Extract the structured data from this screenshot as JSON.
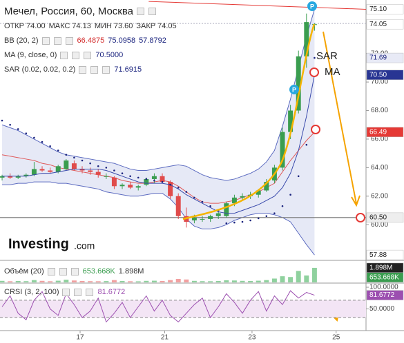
{
  "chart_data": [
    {
      "type": "candlestick",
      "title": "Мечел, Россия, 60, Москва",
      "ohlc_legend": [
        {
          "name": "ОТКР",
          "value": "74.00"
        },
        {
          "name": "МАКС",
          "value": "74.13"
        },
        {
          "name": "МИН",
          "value": "73.60"
        },
        {
          "name": "ЗАКР",
          "value": "74.05"
        }
      ],
      "indicators": [
        {
          "name": "BB (20, 2)",
          "values": [
            "66.4875",
            "75.0958",
            "57.8792"
          ],
          "colors": [
            "#d32f2f",
            "#1a237e",
            "#1a237e"
          ]
        },
        {
          "name": "MA (9, close, 0)",
          "values": [
            "70.5000"
          ],
          "colors": [
            "#1a237e"
          ]
        },
        {
          "name": "SAR (0.02, 0.02, 0.2)",
          "values": [
            "71.6915"
          ],
          "colors": [
            "#1a237e"
          ]
        }
      ],
      "open": [
        63.3,
        63.4,
        63.3,
        63.4,
        63.5,
        63.9,
        63.8,
        63.7,
        63.9,
        64.3,
        63.9,
        63.8,
        63.7,
        63.4,
        63.3,
        62.7,
        62.8,
        62.6,
        62.8,
        63.2,
        63.4,
        63.0,
        62.0,
        60.6,
        60.3,
        60.4,
        60.4,
        60.6,
        60.6,
        61.5,
        61.9,
        62.0,
        62.1,
        62.4,
        63.1,
        64.0,
        66.5,
        68.0,
        71.8,
        74.0
      ],
      "high": [
        63.5,
        63.6,
        63.5,
        63.6,
        64.4,
        64.1,
        64.0,
        64.2,
        64.6,
        64.5,
        64.1,
        64.0,
        63.9,
        63.6,
        63.4,
        62.9,
        63.0,
        62.8,
        63.3,
        63.6,
        63.6,
        63.1,
        62.2,
        61.2,
        60.7,
        60.6,
        60.7,
        61.0,
        61.6,
        62.1,
        62.2,
        62.3,
        62.5,
        63.2,
        64.2,
        66.8,
        68.4,
        72.2,
        74.8,
        74.13
      ],
      "low": [
        63.1,
        63.2,
        63.2,
        63.3,
        63.4,
        63.7,
        63.6,
        63.6,
        63.8,
        63.8,
        63.6,
        63.5,
        63.3,
        63.2,
        62.5,
        62.5,
        62.5,
        62.4,
        62.7,
        62.9,
        62.9,
        61.8,
        60.4,
        59.8,
        60.1,
        60.2,
        60.2,
        60.4,
        60.5,
        61.3,
        61.7,
        61.8,
        61.9,
        62.3,
        62.9,
        63.8,
        66.0,
        67.8,
        71.0,
        73.6
      ],
      "close": [
        63.4,
        63.3,
        63.4,
        63.5,
        63.9,
        63.8,
        63.7,
        64.1,
        64.5,
        63.9,
        63.8,
        63.7,
        63.5,
        63.4,
        62.7,
        62.8,
        62.6,
        62.7,
        63.2,
        63.4,
        63.0,
        62.0,
        60.6,
        60.2,
        60.5,
        60.4,
        60.6,
        60.8,
        61.5,
        61.9,
        62.0,
        62.1,
        62.4,
        63.0,
        64.0,
        66.5,
        68.0,
        71.8,
        74.2,
        74.05
      ],
      "up_color": "#3a9d4f",
      "down_color": "#e04b4b",
      "bollinger": {
        "color": "#5c6bc0",
        "fill": "#dcdff2",
        "middle_color": "#e05a5a",
        "upper": [
          67.0,
          66.8,
          66.6,
          66.3,
          66.0,
          65.7,
          65.4,
          65.1,
          64.9,
          64.8,
          64.7,
          64.6,
          64.5,
          64.4,
          64.3,
          64.1,
          63.9,
          63.8,
          63.8,
          63.9,
          64.0,
          64.1,
          64.2,
          64.1,
          63.8,
          63.5,
          63.3,
          63.2,
          63.1,
          63.2,
          63.4,
          63.6,
          63.9,
          64.4,
          65.2,
          66.9,
          68.8,
          71.0,
          73.2,
          75.0958
        ],
        "middle": [
          64.9,
          64.8,
          64.7,
          64.6,
          64.5,
          64.3,
          64.2,
          64.0,
          63.9,
          63.8,
          63.7,
          63.6,
          63.5,
          63.4,
          63.3,
          63.1,
          63.0,
          62.9,
          62.9,
          63.0,
          63.1,
          63.0,
          62.7,
          62.3,
          61.9,
          61.6,
          61.5,
          61.5,
          61.6,
          61.7,
          61.9,
          62.1,
          62.3,
          62.6,
          62.9,
          63.7,
          64.5,
          65.2,
          65.9,
          66.4875
        ],
        "lower": [
          62.8,
          62.8,
          62.9,
          62.9,
          63.0,
          63.0,
          63.0,
          62.9,
          62.9,
          62.8,
          62.7,
          62.6,
          62.5,
          62.3,
          62.2,
          62.1,
          62.0,
          62.0,
          62.1,
          62.2,
          62.2,
          61.8,
          61.2,
          60.4,
          59.9,
          59.7,
          59.7,
          59.8,
          60.0,
          60.3,
          60.5,
          60.7,
          60.8,
          60.8,
          60.7,
          60.5,
          60.2,
          59.4,
          58.6,
          57.8792
        ]
      },
      "ma": {
        "color": "#3949ab",
        "values": [
          63.4,
          63.4,
          63.4,
          63.4,
          63.5,
          63.6,
          63.6,
          63.7,
          63.8,
          63.9,
          63.9,
          63.9,
          63.9,
          63.8,
          63.6,
          63.4,
          63.2,
          63.0,
          62.9,
          62.9,
          62.9,
          62.8,
          62.5,
          62.1,
          61.8,
          61.5,
          61.2,
          60.9,
          60.8,
          60.8,
          61.0,
          61.2,
          61.4,
          61.7,
          62.0,
          62.6,
          63.6,
          65.2,
          67.6,
          70.5
        ]
      },
      "sar": {
        "color": "#1a237e",
        "values": [
          67.3,
          67.0,
          66.7,
          66.4,
          66.1,
          65.8,
          65.5,
          65.2,
          64.9,
          64.7,
          64.5,
          64.3,
          64.1,
          64.0,
          63.8,
          63.6,
          63.4,
          63.3,
          63.2,
          63.1,
          63.0,
          62.8,
          62.6,
          62.3,
          61.9,
          61.6,
          61.3,
          61.0,
          60.1,
          60.15,
          60.2,
          60.3,
          60.45,
          60.6,
          60.8,
          61.3,
          62.1,
          63.4,
          65.6,
          71.6915
        ]
      },
      "trendline": {
        "x": [
          18.3,
          45.43
        ],
        "y": [
          75.65,
          75.1
        ],
        "color": "#e53935"
      },
      "hline": {
        "value": 60.5,
        "color": "#777"
      },
      "tags": [
        {
          "value": 75.1,
          "label": "75.10",
          "color": "#fff",
          "text_color": "#222"
        },
        {
          "value": 74.05,
          "label": "74.05",
          "color": "#fff",
          "text_color": "#222"
        },
        {
          "value": 71.69,
          "label": "71.69",
          "color": "#e8eaf6",
          "text_color": "#1a237e"
        },
        {
          "value": 70.5,
          "label": "70.50",
          "color": "#283593",
          "text_color": "#fff"
        },
        {
          "value": 66.49,
          "label": "66.49",
          "color": "#e53935",
          "text_color": "#fff"
        },
        {
          "value": 60.5,
          "label": "60.50",
          "color": "#eee",
          "text_color": "#222"
        },
        {
          "value": 57.88,
          "label": "57.88",
          "color": "#fff",
          "text_color": "#222"
        }
      ],
      "ylim": [
        57.5,
        75.75
      ],
      "yticks": [
        {
          "value": 60,
          "label": "60.00"
        },
        {
          "value": 62,
          "label": "62.00"
        },
        {
          "value": 64,
          "label": "64.00"
        },
        {
          "value": 66,
          "label": "66.00"
        },
        {
          "value": 68,
          "label": "68.00"
        },
        {
          "value": 70,
          "label": "70.00"
        },
        {
          "value": 72,
          "label": "72.00"
        }
      ],
      "xlim": [
        -0.26,
        45.43
      ],
      "xticks": [
        {
          "value": 9.74,
          "label": "17"
        },
        {
          "value": 20.3,
          "label": "21"
        },
        {
          "value": 31.2,
          "label": "23"
        },
        {
          "value": 41.7,
          "label": "25"
        }
      ],
      "annotations": [
        "SAR",
        "MA"
      ],
      "signal_label": "P",
      "logo": "Investing",
      "logo_suffix": ".com"
    },
    {
      "type": "bar",
      "title": "Объём (20)",
      "legend_values": [
        "653.668K",
        "1.898M"
      ],
      "values": [
        200000,
        150000,
        180000,
        160000,
        300000,
        200000,
        150000,
        220000,
        350000,
        250000,
        180000,
        160000,
        150000,
        170000,
        300000,
        180000,
        150000,
        140000,
        200000,
        220000,
        180000,
        300000,
        450000,
        380000,
        200000,
        160000,
        150000,
        180000,
        280000,
        250000,
        200000,
        180000,
        220000,
        300000,
        500000,
        800000,
        700000,
        1500000,
        900000,
        1898000
      ],
      "ylim": [
        0,
        2700000
      ],
      "tags": [
        {
          "value": 1898000,
          "label": "1.898M",
          "color": "#222",
          "text_color": "#fff"
        },
        {
          "value": 653668,
          "label": "653.668K",
          "color": "#3a9d4f",
          "text_color": "#fff"
        }
      ]
    },
    {
      "type": "line",
      "title": "CRSI (3, 2, 100)",
      "legend_value": "81.6772",
      "color": "#9c4fb0",
      "values": [
        55,
        80,
        40,
        25,
        70,
        90,
        50,
        35,
        85,
        60,
        30,
        45,
        75,
        20,
        40,
        65,
        30,
        55,
        80,
        45,
        70,
        35,
        20,
        40,
        60,
        75,
        30,
        55,
        85,
        65,
        40,
        70,
        90,
        45,
        80,
        60,
        92,
        75,
        88,
        81.6772
      ],
      "ylim": [
        0,
        108
      ],
      "band": [
        30,
        70
      ],
      "yticks": [
        {
          "value": 100,
          "label": "100.0000"
        },
        {
          "value": 50,
          "label": "50.0000"
        }
      ],
      "tag": {
        "value": 81.6772,
        "label": "81.6772"
      }
    }
  ]
}
